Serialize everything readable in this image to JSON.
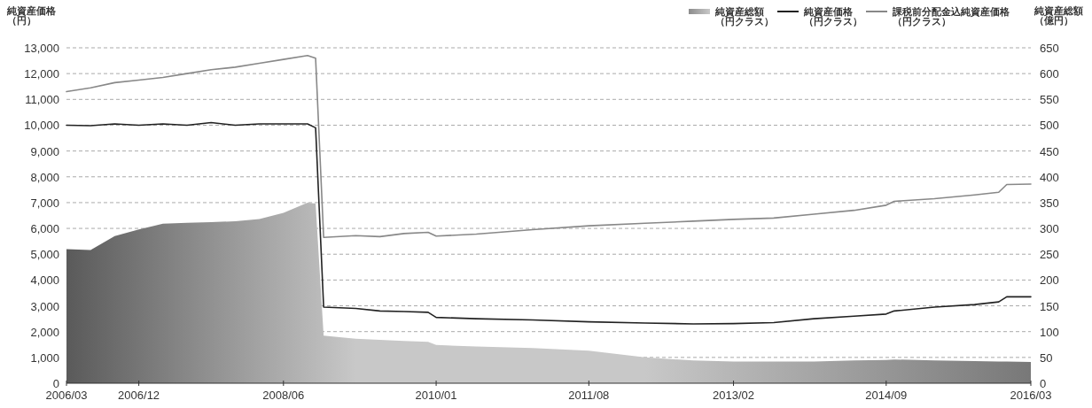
{
  "chart_data": {
    "type": "line",
    "ylabel": "純資産価格（円）",
    "y2label": "純資産総額（億円）",
    "x": [
      "2006-03",
      "2006-06",
      "2006-09",
      "2006-12",
      "2007-03",
      "2007-06",
      "2007-09",
      "2007-12",
      "2008-03",
      "2008-06",
      "2008-09",
      "2008-10",
      "2008-11",
      "2009-03",
      "2009-06",
      "2009-09",
      "2009-12",
      "2010-01",
      "2010-06",
      "2011-01",
      "2011-08",
      "2012-03",
      "2012-09",
      "2013-02",
      "2013-07",
      "2013-12",
      "2014-05",
      "2014-09",
      "2014-10",
      "2015-03",
      "2015-08",
      "2015-11",
      "2015-12",
      "2016-03"
    ],
    "series": [
      {
        "name": "純資産総額（円クラス）",
        "type": "area",
        "axis": "y2",
        "color": "#c8c8c8",
        "values": [
          260,
          258,
          285,
          298,
          309,
          311,
          312,
          314,
          318,
          330,
          350,
          348,
          92,
          86,
          84,
          82,
          80,
          74,
          71,
          68,
          63,
          50,
          44,
          42,
          42,
          42,
          44,
          45,
          46,
          44,
          43,
          42,
          42,
          41
        ]
      },
      {
        "name": "純資産価格（円クラス）",
        "color": "#222222",
        "values": [
          10000,
          9980,
          10050,
          10000,
          10050,
          10000,
          10100,
          10000,
          10050,
          10050,
          10050,
          9900,
          2950,
          2900,
          2800,
          2780,
          2750,
          2550,
          2500,
          2450,
          2380,
          2330,
          2300,
          2310,
          2350,
          2500,
          2600,
          2680,
          2800,
          2950,
          3050,
          3150,
          3350,
          3350
        ]
      },
      {
        "name": "課税前分配金込純資産価格（円クラス）",
        "color": "#888888",
        "values": [
          11300,
          11450,
          11650,
          11750,
          11850,
          12000,
          12150,
          12250,
          12400,
          12550,
          12700,
          12600,
          5650,
          5720,
          5680,
          5800,
          5850,
          5700,
          5780,
          5950,
          6100,
          6200,
          6280,
          6350,
          6400,
          6550,
          6700,
          6900,
          7050,
          7150,
          7300,
          7400,
          7700,
          7720
        ]
      }
    ],
    "xlim": [
      "2006-03",
      "2016-03"
    ],
    "xticks": [
      {
        "value": "2006-03",
        "label": "2006/03"
      },
      {
        "value": "2006-12",
        "label": "2006/12"
      },
      {
        "value": "2008-06",
        "label": "2008/06"
      },
      {
        "value": "2010-01",
        "label": "2010/01"
      },
      {
        "value": "2011-08",
        "label": "2011/08"
      },
      {
        "value": "2013-02",
        "label": "2013/02"
      },
      {
        "value": "2014-09",
        "label": "2014/09"
      },
      {
        "value": "2016-03",
        "label": "2016/03"
      }
    ],
    "ylim": [
      0,
      13000
    ],
    "yticks": [
      0,
      {
        "value": 1000,
        "label": "1,000"
      },
      {
        "value": 2000,
        "label": "2,000"
      },
      {
        "value": 3000,
        "label": "3,000"
      },
      {
        "value": 4000,
        "label": "4,000"
      },
      {
        "value": 5000,
        "label": "5,000"
      },
      {
        "value": 6000,
        "label": "6,000"
      },
      {
        "value": 7000,
        "label": "7,000"
      },
      {
        "value": 8000,
        "label": "8,000"
      },
      {
        "value": 9000,
        "label": "9,000"
      },
      {
        "value": 10000,
        "label": "10,000"
      },
      {
        "value": 11000,
        "label": "11,000"
      },
      {
        "value": 12000,
        "label": "12,000"
      },
      {
        "value": 13000,
        "label": "13,000"
      }
    ],
    "y2lim": [
      0,
      650
    ],
    "y2ticks": [
      0,
      50,
      100,
      150,
      200,
      250,
      300,
      350,
      400,
      450,
      500,
      550,
      600,
      650
    ],
    "grid": "y",
    "line_style": "solid",
    "legend": "top right"
  }
}
